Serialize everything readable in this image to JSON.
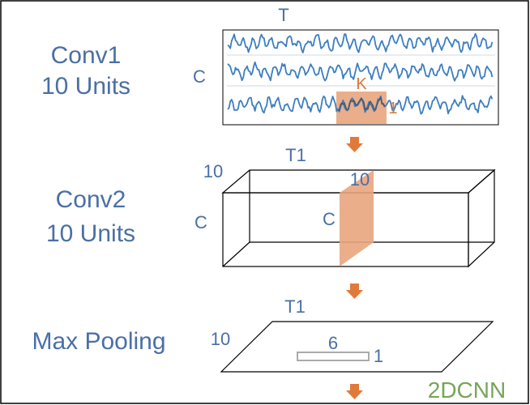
{
  "colors": {
    "text_blue": "#4A6FA5",
    "accent_orange": "#E8A57E",
    "arrow_orange": "#E07A3B",
    "kernel_text": "#D9773B",
    "signal_blue": "#3D7EC0",
    "green": "#77A55A",
    "line": "#000000",
    "pool_gray": "#AAAAAA"
  },
  "conv1": {
    "label_line1": "Conv1",
    "label_line2": "10 Units",
    "axis_t": "T",
    "axis_c": "C",
    "kernel_k": "K",
    "kernel_one": "1"
  },
  "conv2": {
    "label_line1": "Conv2",
    "label_line2": "10 Units",
    "axis_t1": "T1",
    "axis_10_outer": "10",
    "axis_c_outer": "C",
    "slice_10": "10",
    "slice_c": "C"
  },
  "pooling": {
    "label": "Max Pooling",
    "axis_t1": "T1",
    "axis_10": "10",
    "window_6": "6",
    "window_1": "1"
  },
  "model_name": "2DCNN",
  "icons": {
    "arrow": "down-arrow-icon"
  }
}
